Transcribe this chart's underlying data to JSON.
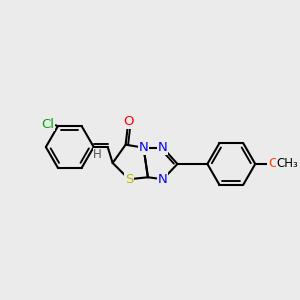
{
  "bg_color": "#ebebeb",
  "bond_color": "#000000",
  "fig_width": 3.0,
  "fig_height": 3.0,
  "dpi": 100,
  "colors": {
    "O": "#ff0000",
    "N": "#0000ff",
    "S": "#cccc00",
    "Cl": "#00cc00",
    "H": "#666666",
    "C": "#000000",
    "OMe_O": "#ff4400"
  },
  "lw": 1.5,
  "lw2": 1.3,
  "fs": 9.5,
  "fs_small": 8.5
}
